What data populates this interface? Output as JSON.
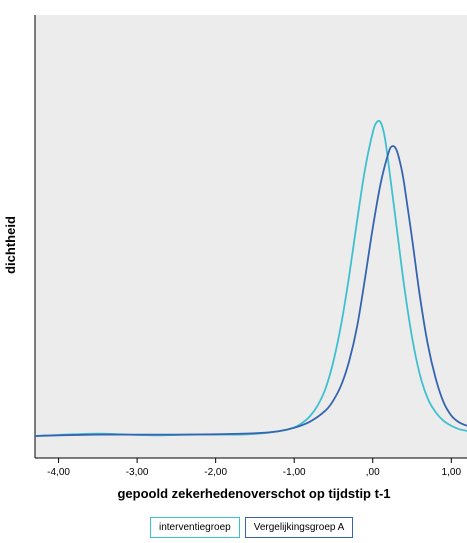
{
  "chart_data": {
    "type": "line",
    "title": "",
    "xlabel": "gepoold zekerhedenoverschot op tijdstip t-1",
    "ylabel": "dichtheid",
    "xlim": [
      -4.3,
      1.2
    ],
    "ylim": [
      0,
      1.0
    ],
    "xticks": [
      -4,
      -3,
      -2,
      -1,
      0,
      1
    ],
    "xtick_labels": [
      "-4,00",
      "-3,00",
      "-2,00",
      "-1,00",
      ",00",
      "1,00"
    ],
    "grid": false,
    "background": "#ececec",
    "legend_position": "bottom",
    "series": [
      {
        "name": "interventiegroep",
        "color": "#3fc0d0",
        "x": [
          -4.3,
          -4.0,
          -3.8,
          -3.5,
          -3.2,
          -3.0,
          -2.7,
          -2.5,
          -2.2,
          -2.0,
          -1.8,
          -1.6,
          -1.4,
          -1.2,
          -1.0,
          -0.9,
          -0.8,
          -0.7,
          -0.6,
          -0.5,
          -0.4,
          -0.3,
          -0.2,
          -0.1,
          0.0,
          0.05,
          0.1,
          0.15,
          0.2,
          0.3,
          0.4,
          0.5,
          0.6,
          0.7,
          0.8,
          0.9,
          1.0,
          1.1,
          1.2
        ],
        "y": [
          0.0,
          0.003,
          0.005,
          0.007,
          0.005,
          0.003,
          0.002,
          0.003,
          0.004,
          0.004,
          0.004,
          0.005,
          0.008,
          0.014,
          0.025,
          0.038,
          0.058,
          0.09,
          0.14,
          0.22,
          0.33,
          0.47,
          0.63,
          0.78,
          0.89,
          0.92,
          0.92,
          0.88,
          0.8,
          0.62,
          0.44,
          0.29,
          0.18,
          0.11,
          0.07,
          0.045,
          0.03,
          0.02,
          0.015
        ]
      },
      {
        "name": "Vergelijkingsgroep A",
        "color": "#3565b0",
        "x": [
          -4.3,
          -4.0,
          -3.5,
          -3.0,
          -2.5,
          -2.0,
          -1.5,
          -1.2,
          -1.0,
          -0.8,
          -0.6,
          -0.5,
          -0.4,
          -0.3,
          -0.2,
          -0.1,
          0.0,
          0.1,
          0.2,
          0.25,
          0.3,
          0.35,
          0.4,
          0.5,
          0.6,
          0.7,
          0.8,
          0.9,
          1.0,
          1.1,
          1.2
        ],
        "y": [
          0.0,
          0.002,
          0.004,
          0.004,
          0.004,
          0.005,
          0.008,
          0.014,
          0.024,
          0.042,
          0.075,
          0.105,
          0.15,
          0.22,
          0.32,
          0.46,
          0.61,
          0.74,
          0.83,
          0.85,
          0.84,
          0.8,
          0.74,
          0.58,
          0.41,
          0.27,
          0.17,
          0.1,
          0.06,
          0.04,
          0.03
        ]
      }
    ]
  }
}
